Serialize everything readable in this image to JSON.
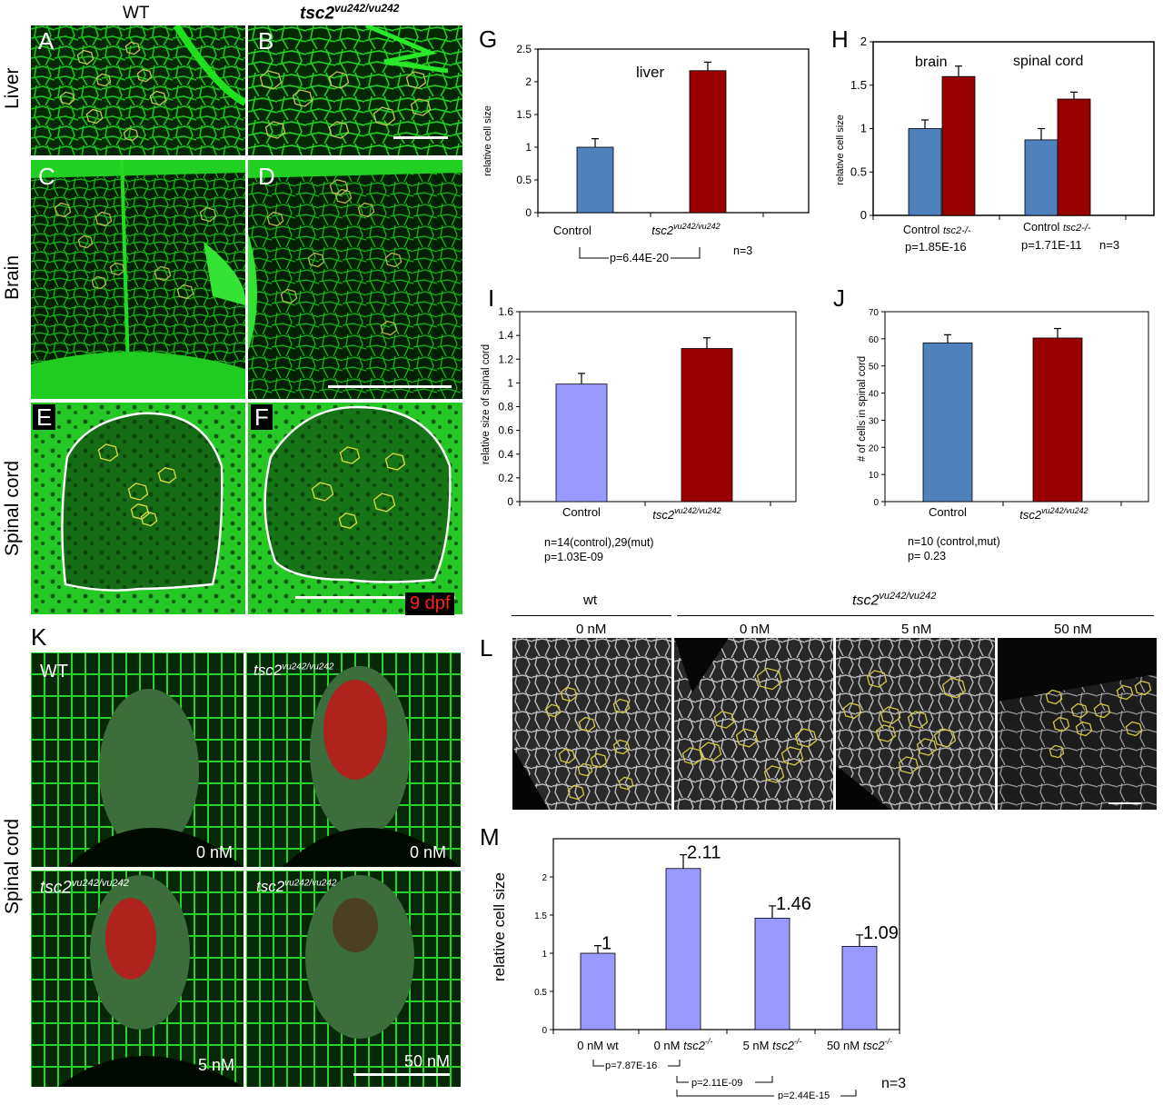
{
  "header": {
    "wt": "WT",
    "mut": "tsc2",
    "mut_sup": "vu242/vu242"
  },
  "rows": {
    "liver": "Liver",
    "brain": "Brain",
    "spinal": "Spinal cord",
    "spinal_k": "Spinal cord"
  },
  "panel_letters": {
    "A": "A",
    "B": "B",
    "C": "C",
    "D": "D",
    "E": "E",
    "F": "F",
    "G": "G",
    "H": "H",
    "I": "I",
    "J": "J",
    "K": "K",
    "L": "L",
    "M": "M"
  },
  "stage": "9 dpf",
  "k_panel": {
    "wt": "WT",
    "gen": "tsc2",
    "gen_sup": "vu242/vu242",
    "c0a": "0 nM",
    "c0b": "0 nM",
    "c5": "5 nM",
    "c50": "50 nM"
  },
  "l_panel": {
    "wt": "wt",
    "gen": "tsc2",
    "gen_sup": "vu242/vu242",
    "c1": "0 nM",
    "c2": "0 nM",
    "c3": "5 nM",
    "c4": "50 nM"
  },
  "colors": {
    "control_blue": "#4f81bd",
    "mutant_red": "#990000",
    "lavender": "#9999ff",
    "gfp": "#00e000"
  },
  "chart_data": [
    {
      "id": "G",
      "type": "bar",
      "ylabel": "relative cell size",
      "ylim": [
        0,
        2.5
      ],
      "yticks": [
        "0",
        "0.5",
        "1",
        "1.5",
        "2",
        "2.5"
      ],
      "categories": [
        "Control",
        "tsc2"
      ],
      "category_sup": [
        "",
        "vu242/vu242"
      ],
      "values": [
        1.0,
        2.17
      ],
      "errors": [
        0.13,
        0.13
      ],
      "annotation": "liver",
      "stats": {
        "p": "p=6.44E-20",
        "n": "n=3"
      }
    },
    {
      "id": "H",
      "type": "bar",
      "ylabel": "relative cell size",
      "ylim": [
        0,
        2
      ],
      "yticks": [
        "0",
        "0.5",
        "1",
        "1.5",
        "2"
      ],
      "groups": [
        "brain",
        "spinal cord"
      ],
      "xlabels": [
        "Control",
        "tsc2-/-",
        "Control",
        "tsc2-/-"
      ],
      "values": [
        1.0,
        1.6,
        0.87,
        1.34
      ],
      "errors": [
        0.1,
        0.12,
        0.13,
        0.08
      ],
      "stats": {
        "p1": "p=1.85E-16",
        "p2": "p=1.71E-11",
        "n": "n=3"
      }
    },
    {
      "id": "I",
      "type": "bar",
      "ylabel": "relative size of spinal cord",
      "ylim": [
        0,
        1.6
      ],
      "yticks": [
        "0",
        "0.2",
        "0.4",
        "0.6",
        "0.8",
        "1",
        "1.2",
        "1.4",
        "1.6"
      ],
      "categories": [
        "Control",
        "tsc2"
      ],
      "category_sup": [
        "",
        "vu242/vu242"
      ],
      "values": [
        0.99,
        1.29
      ],
      "errors": [
        0.09,
        0.09
      ],
      "stats": {
        "n": "n=14(control),29(mut)",
        "p": "p=1.03E-09"
      }
    },
    {
      "id": "J",
      "type": "bar",
      "ylabel": "# of cells in spinal cord",
      "ylim": [
        0,
        70
      ],
      "yticks": [
        "0",
        "10",
        "20",
        "30",
        "40",
        "50",
        "60",
        "70"
      ],
      "categories": [
        "Control",
        "tsc2"
      ],
      "category_sup": [
        "",
        "vu242/vu242"
      ],
      "values": [
        58.5,
        60.3
      ],
      "errors": [
        3.0,
        3.5
      ],
      "stats": {
        "n": "n=10 (control,mut)",
        "p": "p= 0.23"
      }
    },
    {
      "id": "M",
      "type": "bar",
      "ylabel": "relative cell size",
      "ylim": [
        0,
        2.5
      ],
      "yticks": [
        "0",
        "0.5",
        "1",
        "1.5",
        "2"
      ],
      "categories": [
        "0 nM wt",
        "0 nM tsc2",
        "5 nM tsc2",
        "50 nM tsc2"
      ],
      "category_main": [
        "0 nM ",
        "0 nM ",
        "5 nM ",
        "50 nM "
      ],
      "category_gen": [
        "wt",
        "tsc2",
        "tsc2",
        "tsc2"
      ],
      "category_sup": [
        "",
        "-/-",
        "-/-",
        "-/-"
      ],
      "values": [
        1,
        2.11,
        1.46,
        1.09
      ],
      "data_labels": [
        "1",
        "2.11",
        "1.46",
        "1.09"
      ],
      "errors": [
        0.1,
        0.18,
        0.16,
        0.15
      ],
      "stats": {
        "p1": "p=7.87E-16",
        "p2": "p=2.11E-09",
        "p3": "p=2.44E-15",
        "n": "n=3"
      }
    }
  ]
}
